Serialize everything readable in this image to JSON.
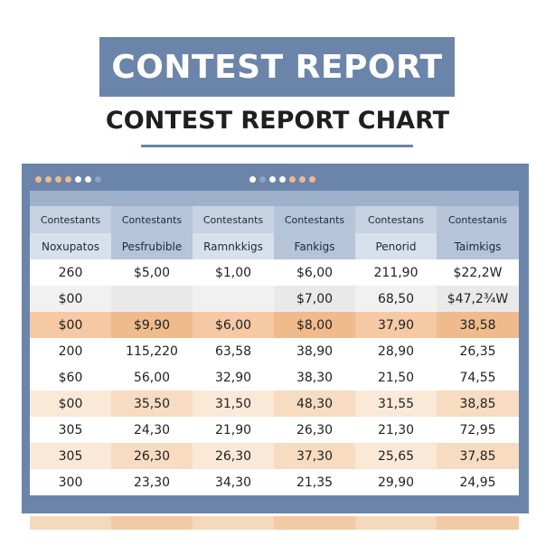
{
  "banner": {
    "title": "CONTEST REPORT"
  },
  "subtitle": "CONTEST REPORT CHART",
  "colors": {
    "accent": "#6b84aa",
    "header": "#c6d2e2",
    "orange_row": "#f4c9a3",
    "peach_row": "#fbe9d8"
  },
  "titlebar_dots": {
    "left_group": [
      "#f0b892",
      "#f0b892",
      "#f0b892",
      "#f0b892",
      "#ffffff",
      "#ffffff",
      "#8fa3c2"
    ],
    "center_group": [
      "#ffffff",
      "#8fa3c2",
      "#ffffff",
      "#ffffff",
      "#f0b892",
      "#f0b892",
      "#f0b892"
    ]
  },
  "table": {
    "header_row_1": [
      "Contestants",
      "Contestants",
      "Contestants",
      "Contestants",
      "Contestans",
      "Contestanis"
    ],
    "header_row_2": [
      "Noxupatos",
      "Pesfrubible",
      "Ramnkkigs",
      "Fankigs",
      "Penorid",
      "Taimkigs"
    ],
    "rows": [
      {
        "style": "white",
        "cells": [
          "260",
          "$5,00",
          "$1,00",
          "$6,00",
          "211,90",
          "$22,2W"
        ]
      },
      {
        "style": "gray",
        "cells": [
          "$00",
          "",
          "",
          "$7,00",
          "68,50",
          "$47,2¾W"
        ]
      },
      {
        "style": "orange",
        "cells": [
          "$00",
          "$9,90",
          "$6,00",
          "$8,00",
          "37,90",
          "38,58"
        ]
      },
      {
        "style": "white",
        "cells": [
          "200",
          "115,220",
          "63,58",
          "38,90",
          "28,90",
          "26,35"
        ]
      },
      {
        "style": "white",
        "cells": [
          "$60",
          "56,00",
          "32,90",
          "38,30",
          "21,50",
          "74,55"
        ]
      },
      {
        "style": "peach",
        "cells": [
          "$00",
          "35,50",
          "31,50",
          "48,30",
          "31,55",
          "38,85"
        ]
      },
      {
        "style": "white",
        "cells": [
          "305",
          "24,30",
          "21,90",
          "26,30",
          "21,30",
          "72,95"
        ]
      },
      {
        "style": "peach",
        "cells": [
          "305",
          "26,30",
          "26,30",
          "37,30",
          "25,65",
          "37,85"
        ]
      },
      {
        "style": "white",
        "cells": [
          "300",
          "23,30",
          "34,30",
          "21,35",
          "29,90",
          "24,95"
        ]
      }
    ]
  }
}
